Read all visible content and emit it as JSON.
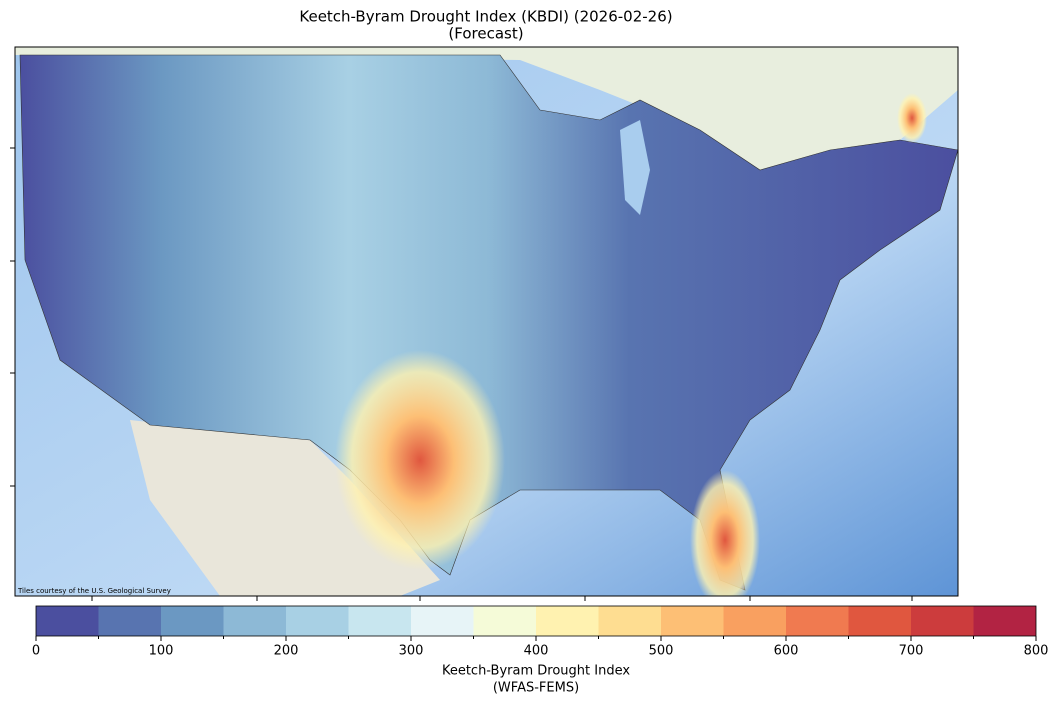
{
  "header": {
    "title": "Keetch-Byram Drought Index (KBDI) (2026-02-26)",
    "subtitle": "(Forecast)"
  },
  "map": {
    "attribution": "Tiles courtesy of the U.S. Geological Survey"
  },
  "colorbar": {
    "label": "Keetch-Byram Drought Index",
    "sublabel": "(WFAS-FEMS)",
    "lim": [
      0,
      800
    ],
    "boundaries": [
      0,
      50,
      100,
      150,
      200,
      250,
      300,
      350,
      400,
      450,
      500,
      550,
      600,
      650,
      700,
      750,
      800
    ],
    "colors": [
      "#4b4f9f",
      "#5874b0",
      "#6b98c2",
      "#8db9d6",
      "#a8d0e4",
      "#c8e6ef",
      "#e7f4f7",
      "#f5fbd8",
      "#fff2b0",
      "#fedd91",
      "#fdbf75",
      "#f9a060",
      "#f07a50",
      "#e0573f",
      "#cc3c3d",
      "#b22343"
    ],
    "ticks": [
      0,
      100,
      200,
      300,
      400,
      500,
      600,
      700,
      800
    ],
    "minor_ticks": [
      50,
      150,
      250,
      350,
      450,
      550,
      650,
      750
    ]
  }
}
